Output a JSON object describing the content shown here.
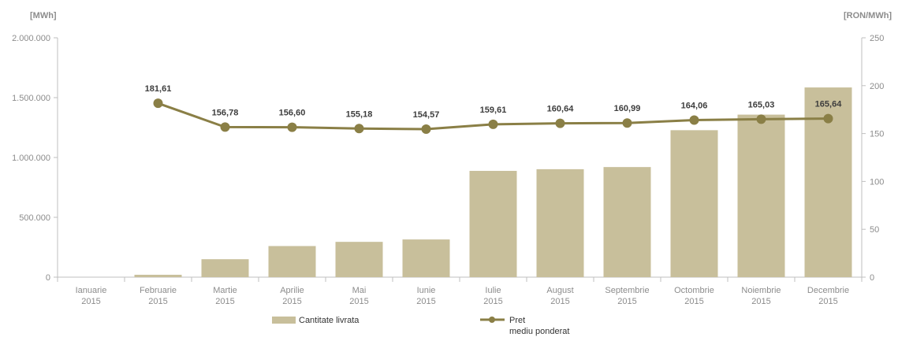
{
  "colors": {
    "bar": "#c8bf9b",
    "line": "#8a7f46",
    "axis": "#bfbfbf",
    "text": "#8c8c8c"
  },
  "chart_data": {
    "type": "bar",
    "ylabel": "[MWh]",
    "y2label": "[RON/MWh]",
    "ylim": [
      0,
      2000000
    ],
    "y2lim": [
      0,
      250
    ],
    "yticks": [
      "2.000.000",
      "1.500.000",
      "1.000.000",
      "500.000",
      "0"
    ],
    "y2ticks": [
      "250",
      "200",
      "150",
      "100",
      "50",
      "0"
    ],
    "categories": [
      [
        "Ianuarie",
        "2015"
      ],
      [
        "Februarie",
        "2015"
      ],
      [
        "Martie",
        "2015"
      ],
      [
        "Aprilie",
        "2015"
      ],
      [
        "Mai",
        "2015"
      ],
      [
        "Iunie",
        "2015"
      ],
      [
        "Iulie",
        "2015"
      ],
      [
        "August",
        "2015"
      ],
      [
        "Septembrie",
        "2015"
      ],
      [
        "Octombrie",
        "2015"
      ],
      [
        "Noiembrie",
        "2015"
      ],
      [
        "Decembrie",
        "2015"
      ]
    ],
    "series": [
      {
        "name": "Cantitate livrata",
        "type": "bar",
        "axis": "left",
        "values": [
          0,
          20000,
          150000,
          260000,
          295000,
          315000,
          888000,
          902000,
          920000,
          1228000,
          1358000,
          1585000
        ]
      },
      {
        "name": "Pret\nmediu ponderat",
        "type": "line",
        "axis": "right",
        "values": [
          null,
          181.61,
          156.78,
          156.6,
          155.18,
          154.57,
          159.61,
          160.64,
          160.99,
          164.06,
          165.03,
          165.64
        ],
        "labels": [
          "",
          "181,61",
          "156,78",
          "156,60",
          "155,18",
          "154,57",
          "159,61",
          "160,64",
          "160,99",
          "164,06",
          "165,03",
          "165,64"
        ]
      }
    ],
    "legend_position": "bottom",
    "grid": false
  }
}
